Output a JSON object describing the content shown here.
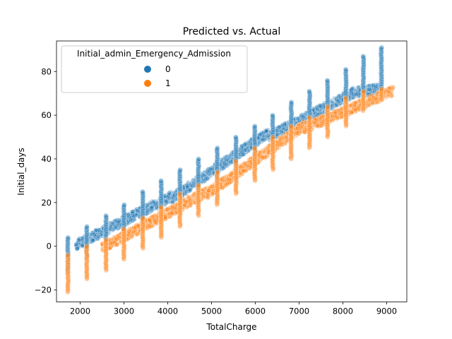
{
  "chart_data": {
    "type": "scatter",
    "title": "Predicted vs. Actual",
    "xlabel": "TotalCharge",
    "ylabel": "Initial_days",
    "xlim": [
      1460,
      9460
    ],
    "ylim": [
      -25.5,
      94
    ],
    "x_ticks": [
      2000,
      3000,
      4000,
      5000,
      6000,
      7000,
      8000,
      9000
    ],
    "x_tick_labels": [
      "2000",
      "3000",
      "4000",
      "5000",
      "6000",
      "7000",
      "8000",
      "9000"
    ],
    "y_ticks": [
      -20,
      0,
      20,
      40,
      60,
      80
    ],
    "y_tick_labels": [
      "−20",
      "0",
      "20",
      "40",
      "60",
      "80"
    ],
    "grid": false,
    "legend": {
      "title": "Initial_admin_Emergency_Admission",
      "placement": "top-left",
      "entries": [
        {
          "label": "0",
          "color": "#1f77b4"
        },
        {
          "label": "1",
          "color": "#ff7f0e"
        }
      ]
    },
    "series": [
      {
        "label": "0",
        "color": "#1f77b4",
        "clouds": [
          {
            "x0": 1900,
            "x1": 4100,
            "y0": 0.5,
            "y1": 23
          },
          {
            "x0": 4100,
            "x1": 6300,
            "y0": 22,
            "y1": 52
          },
          {
            "x0": 6300,
            "x1": 8300,
            "y0": 50,
            "y1": 71
          },
          {
            "x0": 8300,
            "x1": 8850,
            "y0": 70.5,
            "y1": 72
          }
        ],
        "stacks": [
          {
            "x": 1720,
            "y_min": -12,
            "y_max": 4
          },
          {
            "x": 2150,
            "y_min": -5,
            "y_max": 9
          },
          {
            "x": 2590,
            "y_min": 2,
            "y_max": 14
          },
          {
            "x": 3000,
            "y_min": 6,
            "y_max": 19
          },
          {
            "x": 3430,
            "y_min": 11,
            "y_max": 25
          },
          {
            "x": 3850,
            "y_min": 15,
            "y_max": 30
          },
          {
            "x": 4280,
            "y_min": 20,
            "y_max": 35
          },
          {
            "x": 4700,
            "y_min": 25,
            "y_max": 40
          },
          {
            "x": 5130,
            "y_min": 30,
            "y_max": 45
          },
          {
            "x": 5560,
            "y_min": 35,
            "y_max": 50
          },
          {
            "x": 5990,
            "y_min": 39,
            "y_max": 55
          },
          {
            "x": 6400,
            "y_min": 45,
            "y_max": 60
          },
          {
            "x": 6820,
            "y_min": 50,
            "y_max": 66
          },
          {
            "x": 7240,
            "y_min": 55,
            "y_max": 71
          },
          {
            "x": 7650,
            "y_min": 60,
            "y_max": 76
          },
          {
            "x": 8070,
            "y_min": 66,
            "y_max": 81
          },
          {
            "x": 8470,
            "y_min": 69,
            "y_max": 87
          },
          {
            "x": 8880,
            "y_min": 72,
            "y_max": 91
          }
        ]
      },
      {
        "label": "1",
        "color": "#ff7f0e",
        "clouds": [
          {
            "x0": 2500,
            "x1": 4900,
            "y0": -1,
            "y1": 25
          },
          {
            "x0": 4900,
            "x1": 7100,
            "y0": 24,
            "y1": 55
          },
          {
            "x0": 7100,
            "x1": 9150,
            "y0": 54,
            "y1": 71
          }
        ],
        "stacks": [
          {
            "x": 1720,
            "y_min": -21,
            "y_max": -4
          },
          {
            "x": 2150,
            "y_min": -15,
            "y_max": 0
          },
          {
            "x": 2590,
            "y_min": -11,
            "y_max": 3
          },
          {
            "x": 3000,
            "y_min": -6,
            "y_max": 8
          },
          {
            "x": 3430,
            "y_min": -1,
            "y_max": 13
          },
          {
            "x": 3850,
            "y_min": 4,
            "y_max": 18
          },
          {
            "x": 4280,
            "y_min": 9,
            "y_max": 24
          },
          {
            "x": 4700,
            "y_min": 14,
            "y_max": 28
          },
          {
            "x": 5130,
            "y_min": 19,
            "y_max": 34
          },
          {
            "x": 5560,
            "y_min": 24,
            "y_max": 39
          },
          {
            "x": 5990,
            "y_min": 30,
            "y_max": 45
          },
          {
            "x": 6400,
            "y_min": 35,
            "y_max": 50
          },
          {
            "x": 6820,
            "y_min": 40,
            "y_max": 55
          },
          {
            "x": 7240,
            "y_min": 45,
            "y_max": 59
          },
          {
            "x": 7650,
            "y_min": 50,
            "y_max": 64
          },
          {
            "x": 8070,
            "y_min": 55,
            "y_max": 68
          },
          {
            "x": 8470,
            "y_min": 62,
            "y_max": 71
          },
          {
            "x": 8880,
            "y_min": 67,
            "y_max": 72
          }
        ]
      }
    ]
  }
}
